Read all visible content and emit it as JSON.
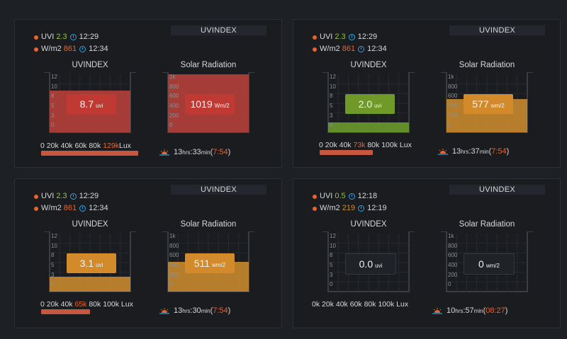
{
  "panels": [
    {
      "title": "UVINDEX",
      "legend": [
        {
          "label": "UVI",
          "value": "2.3",
          "value_color": "#8fc63d",
          "time": "12:29"
        },
        {
          "label": "W/m2",
          "value": "861",
          "value_color": "#e8642f",
          "time": "12:34"
        }
      ],
      "uv_gauge": {
        "title": "UVINDEX",
        "ticks": [
          "12",
          "10",
          "8",
          "5",
          "3",
          "0"
        ],
        "value": "8.7",
        "unit": "uvi",
        "level": 0.725,
        "color": "#c03a33",
        "fill_color": "#b5403a"
      },
      "solar_gauge": {
        "title": "Solar Radiation",
        "ticks": [
          "1k",
          "800",
          "600",
          "400",
          "200",
          "0"
        ],
        "value": "1019",
        "unit": "Wm/2",
        "level": 1.0,
        "color": "#c03a33",
        "fill_color": "#b5403a"
      },
      "lux": {
        "scale": [
          "0",
          "20k",
          "40k",
          "60k",
          "80k"
        ],
        "highlight": "129k",
        "unit": "Lux",
        "level": 1.0
      },
      "sun": {
        "hours": "13",
        "hrs": "hrs",
        "colon": ":",
        "minutes": "33",
        "min": "min",
        "open": "(",
        "time": "7:54",
        "close": ")"
      }
    },
    {
      "title": "UVINDEX",
      "legend": [
        {
          "label": "UVI",
          "value": "2.3",
          "value_color": "#8fc63d",
          "time": "12:29"
        },
        {
          "label": "W/m2",
          "value": "861",
          "value_color": "#e8642f",
          "time": "12:34"
        }
      ],
      "uv_gauge": {
        "title": "UVINDEX",
        "ticks": [
          "12",
          "10",
          "8",
          "5",
          "3",
          "0"
        ],
        "value": "2.0",
        "unit": "uvi",
        "level": 0.167,
        "color": "#6f9a2a",
        "fill_color": "#6a9a2b"
      },
      "solar_gauge": {
        "title": "Solar Radiation",
        "ticks": [
          "1k",
          "800",
          "600",
          "400",
          "200",
          "0"
        ],
        "value": "577",
        "unit": "wm/2",
        "level": 0.577,
        "color": "#d28a2a",
        "fill_color": "#c88a2e"
      },
      "lux": {
        "scale": [
          "0",
          "20k",
          "40k"
        ],
        "highlight": "73k",
        "scale_after": [
          "80k",
          "100k"
        ],
        "unit": "Lux",
        "level": 0.55
      },
      "sun": {
        "hours": "13",
        "hrs": "hrs",
        "colon": ":",
        "minutes": "37",
        "min": "min",
        "open": "(",
        "time": "7:54",
        "close": ")"
      }
    },
    {
      "title": "UVINDEX",
      "legend": [
        {
          "label": "UVI",
          "value": "2.3",
          "value_color": "#8fc63d",
          "time": "12:29"
        },
        {
          "label": "W/m2",
          "value": "861",
          "value_color": "#e8642f",
          "time": "12:34"
        }
      ],
      "uv_gauge": {
        "title": "UVINDEX",
        "ticks": [
          "12",
          "10",
          "8",
          "5",
          "3",
          "0"
        ],
        "value": "3.1",
        "unit": "uvi",
        "level": 0.26,
        "color": "#d28a2a",
        "fill_color": "#c88a2e"
      },
      "solar_gauge": {
        "title": "Solar Radiation",
        "ticks": [
          "1k",
          "800",
          "600",
          "400",
          "200",
          "0"
        ],
        "value": "511",
        "unit": "wm/2",
        "level": 0.511,
        "color": "#d28a2a",
        "fill_color": "#c88a2e"
      },
      "lux": {
        "scale": [
          "0",
          "20k",
          "40k"
        ],
        "highlight": "65k",
        "scale_after": [
          "80k",
          "100k"
        ],
        "unit": "Lux",
        "level": 0.5
      },
      "sun": {
        "hours": "13",
        "hrs": "hrs",
        "colon": ":",
        "minutes": "30",
        "min": "min",
        "open": "(",
        "time": "7:54",
        "close": ")"
      }
    },
    {
      "title": "UVINDEX",
      "legend": [
        {
          "label": "UVI",
          "value": "0.5",
          "value_color": "#8fc63d",
          "time": "12:18"
        },
        {
          "label": "W/m2",
          "value": "219",
          "value_color": "#d28a2a",
          "time": "12:19"
        }
      ],
      "uv_gauge": {
        "title": "UVINDEX",
        "ticks": [
          "12",
          "10",
          "8",
          "5",
          "3",
          "0"
        ],
        "value": "0.0",
        "unit": "uvi",
        "level": 0.0,
        "color": "#2a2e34",
        "fill_color": "#2a2e34"
      },
      "solar_gauge": {
        "title": "Solar Radiation",
        "ticks": [
          "1k",
          "800",
          "600",
          "400",
          "200",
          "0"
        ],
        "value": "0",
        "unit": "wm/2",
        "level": 0.0,
        "color": "#2a2e34",
        "fill_color": "#2a2e34"
      },
      "lux": {
        "scale": [
          "0k",
          "20k",
          "40k",
          "60k",
          "80k",
          "100k"
        ],
        "highlight": "",
        "unit": "Lux",
        "level": 0.0
      },
      "sun": {
        "hours": "10",
        "hrs": "hrs",
        "colon": ":",
        "minutes": "57",
        "min": "min",
        "open": "(",
        "time": "08:27",
        "close": ")"
      }
    }
  ]
}
